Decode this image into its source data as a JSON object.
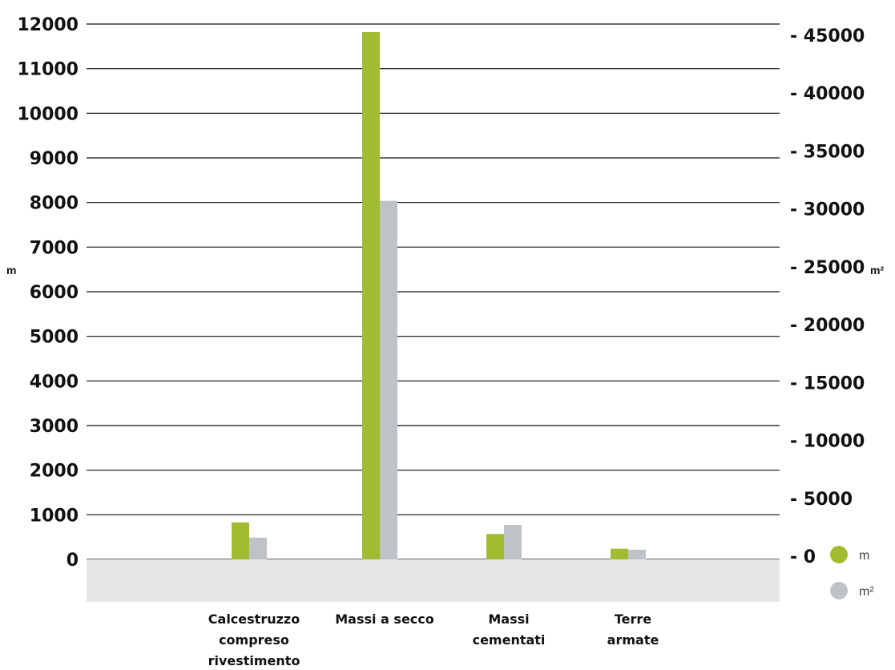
{
  "chart_data": {
    "type": "bar",
    "categories": [
      [
        "Calcestruzzo",
        "compreso",
        "rivestimento"
      ],
      [
        "Massi a secco"
      ],
      [
        "Massi",
        "cementati"
      ],
      [
        "Terre",
        "armate"
      ]
    ],
    "series": [
      {
        "name": "m",
        "axis": "left",
        "color": "#a1bc32",
        "values": [
          830,
          11820,
          570,
          240
        ]
      },
      {
        "name": "m²",
        "axis": "right",
        "color": "#bfc3c7",
        "values": [
          1600,
          30700,
          2700,
          560
        ]
      }
    ],
    "ylabel": "m",
    "y2label": "m²",
    "ylim": [
      0,
      12000
    ],
    "y2lim": [
      0,
      45000
    ],
    "yticks": [
      0,
      1000,
      2000,
      3000,
      4000,
      5000,
      6000,
      7000,
      8000,
      9000,
      10000,
      11000,
      12000
    ],
    "y2ticks": [
      0,
      5000,
      10000,
      15000,
      20000,
      25000,
      30000,
      35000,
      40000,
      45000
    ],
    "grid": true,
    "legend": "bottom-right"
  }
}
